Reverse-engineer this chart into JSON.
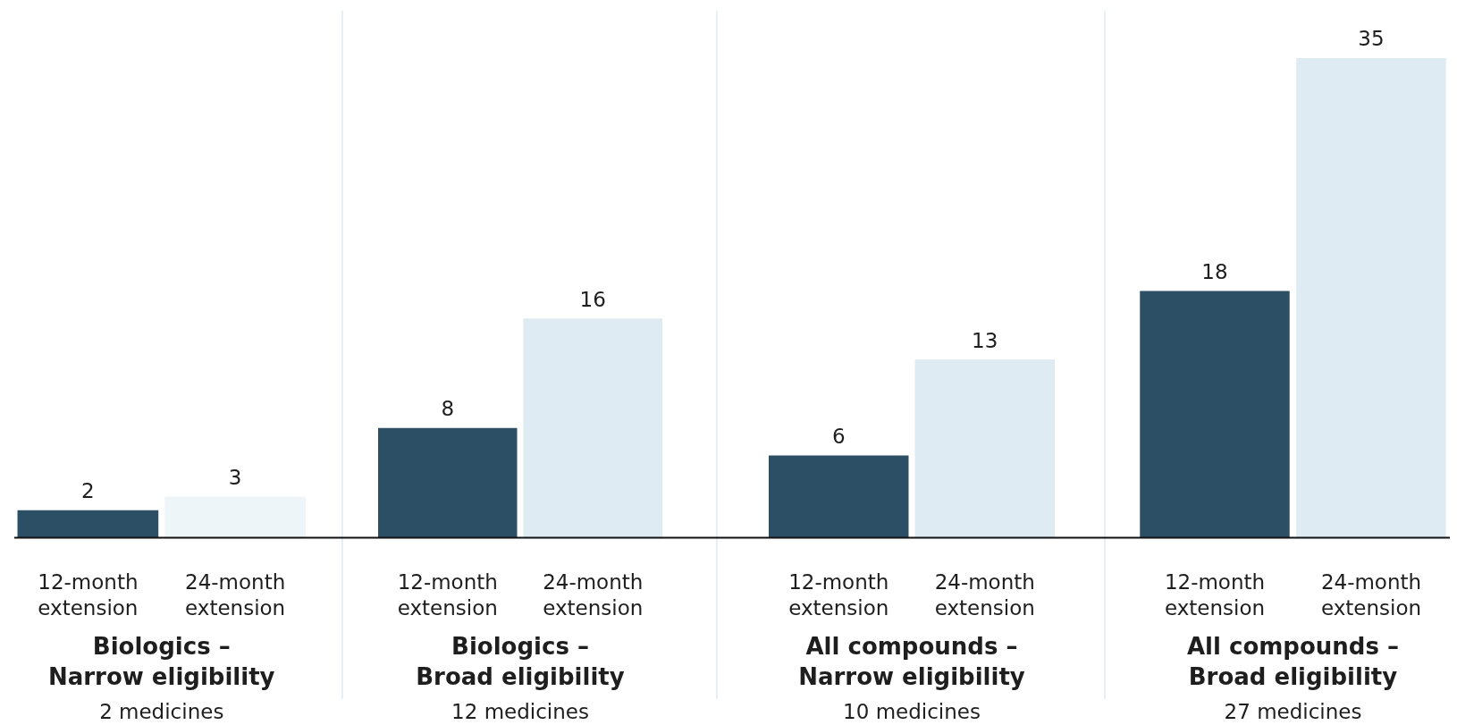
{
  "chart_data": [
    {
      "type": "bar",
      "xlabel": "Biologics –\nNarrow eligibility",
      "categories": [
        "12-month extension",
        "24-month extension"
      ],
      "values": [
        2,
        3
      ],
      "colors": [
        "#2c4f66",
        "#edf5f8"
      ],
      "data_labels": true,
      "annotations": [
        "2 medicines"
      ]
    },
    {
      "type": "bar",
      "xlabel": "Biologics –\nBroad eligibility",
      "categories": [
        "12-month extension",
        "24-month extension"
      ],
      "values": [
        8,
        16
      ],
      "colors": [
        "#2c4f66",
        "#deebf2"
      ],
      "data_labels": true,
      "annotations": [
        "12 medicines"
      ]
    },
    {
      "type": "bar",
      "xlabel": "All compounds –\nNarrow eligibility",
      "categories": [
        "12-month extension",
        "24-month extension"
      ],
      "values": [
        6,
        13
      ],
      "colors": [
        "#2c4f66",
        "#deebf2"
      ],
      "data_labels": true,
      "annotations": [
        "10 medicines"
      ]
    },
    {
      "type": "bar",
      "xlabel": "All compounds –\nBroad eligibility",
      "categories": [
        "12-month extension",
        "24-month extension"
      ],
      "values": [
        18,
        35
      ],
      "colors": [
        "#2c4f66",
        "#deebf2"
      ],
      "data_labels": true,
      "annotations": [
        "27 medicines"
      ]
    }
  ]
}
